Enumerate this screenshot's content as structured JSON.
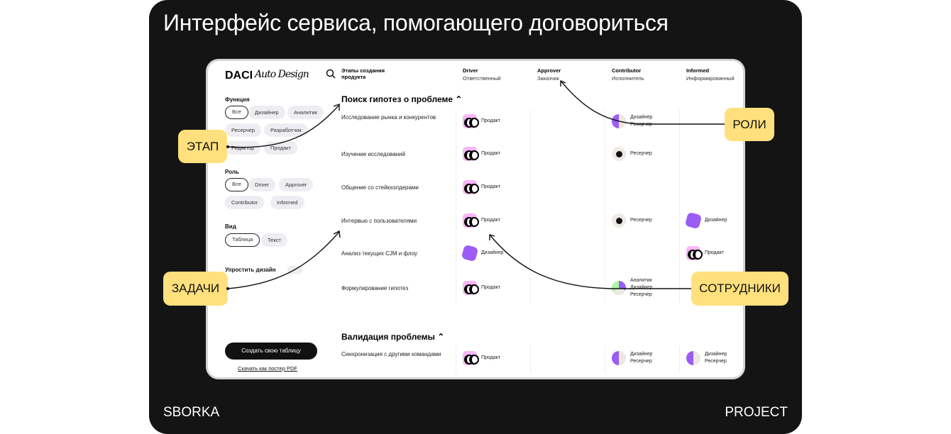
{
  "title": "Интерфейс сервиса, помогающего договориться",
  "footer": {
    "left": "SBORKA",
    "right": "PROJECT"
  },
  "app": {
    "logo": "DACI",
    "logo_script": "Auto Design",
    "search_icon": "search-icon",
    "stages_header": "Этапы создания продукта",
    "roles": [
      {
        "name": "Driver",
        "sub": "Ответственный"
      },
      {
        "name": "Approver",
        "sub": "Заказчик"
      },
      {
        "name": "Contributor",
        "sub": "Исполнитель"
      },
      {
        "name": "Informed",
        "sub": "Информированный"
      }
    ],
    "filters": {
      "function_label": "Функция",
      "function_chips": [
        "Все",
        "Дизайнер",
        "Аналитик",
        "Ресерчер",
        "Разработчик",
        "Редактор",
        "Продакт"
      ],
      "role_label": "Роль",
      "role_chips": [
        "Все",
        "Driver",
        "Approver",
        "Contributor",
        "Informed"
      ],
      "view_label": "Вид",
      "view_chips": [
        "Таблица",
        "Текст"
      ],
      "simplify_label": "Упростить дизайн",
      "simplify_on": false
    },
    "create_button": "Создать свою таблицу",
    "download_link": "Скачать как постер PDF",
    "sections": [
      {
        "title": "Поиск гипотез о проблеме",
        "tasks": [
          {
            "name": "Исследование рынка и конкурентов",
            "driver": "Продакт",
            "contributor": "Дизайнер\nРесерчер"
          },
          {
            "name": "Изучение исследований",
            "driver": "Продакт",
            "contributor": "Ресерчер"
          },
          {
            "name": "Общение со стейкхолдерами",
            "driver": "Продакт"
          },
          {
            "name": "Интервью с пользователями",
            "driver": "Продакт",
            "contributor": "Ресерчер",
            "informed": "Дизайнер"
          },
          {
            "name": "Анализ текущих CJM и флоу",
            "driver": "Дизайнер",
            "informed": "Продакт"
          },
          {
            "name": "Формулирование гипотез",
            "driver": "Продакт",
            "contributor": "Аналитик\nДизайнер\nРесерчер"
          }
        ]
      },
      {
        "title": "Валидация проблемы",
        "tasks": [
          {
            "name": "Синхронизация с другими командами",
            "driver": "Продакт",
            "contributor": "Дизайнер\nРесерчер",
            "informed": "Дизайнер\nРесерчер"
          }
        ]
      }
    ]
  },
  "callouts": {
    "stage": "ЭТАП",
    "roles": "РОЛИ",
    "tasks": "ЗАДАЧИ",
    "staff": "СОТРУДНИКИ"
  },
  "colors": {
    "callout": "#ffe07d",
    "accent_purple": "#9b5cf6",
    "pink": "#f7b7f7"
  }
}
